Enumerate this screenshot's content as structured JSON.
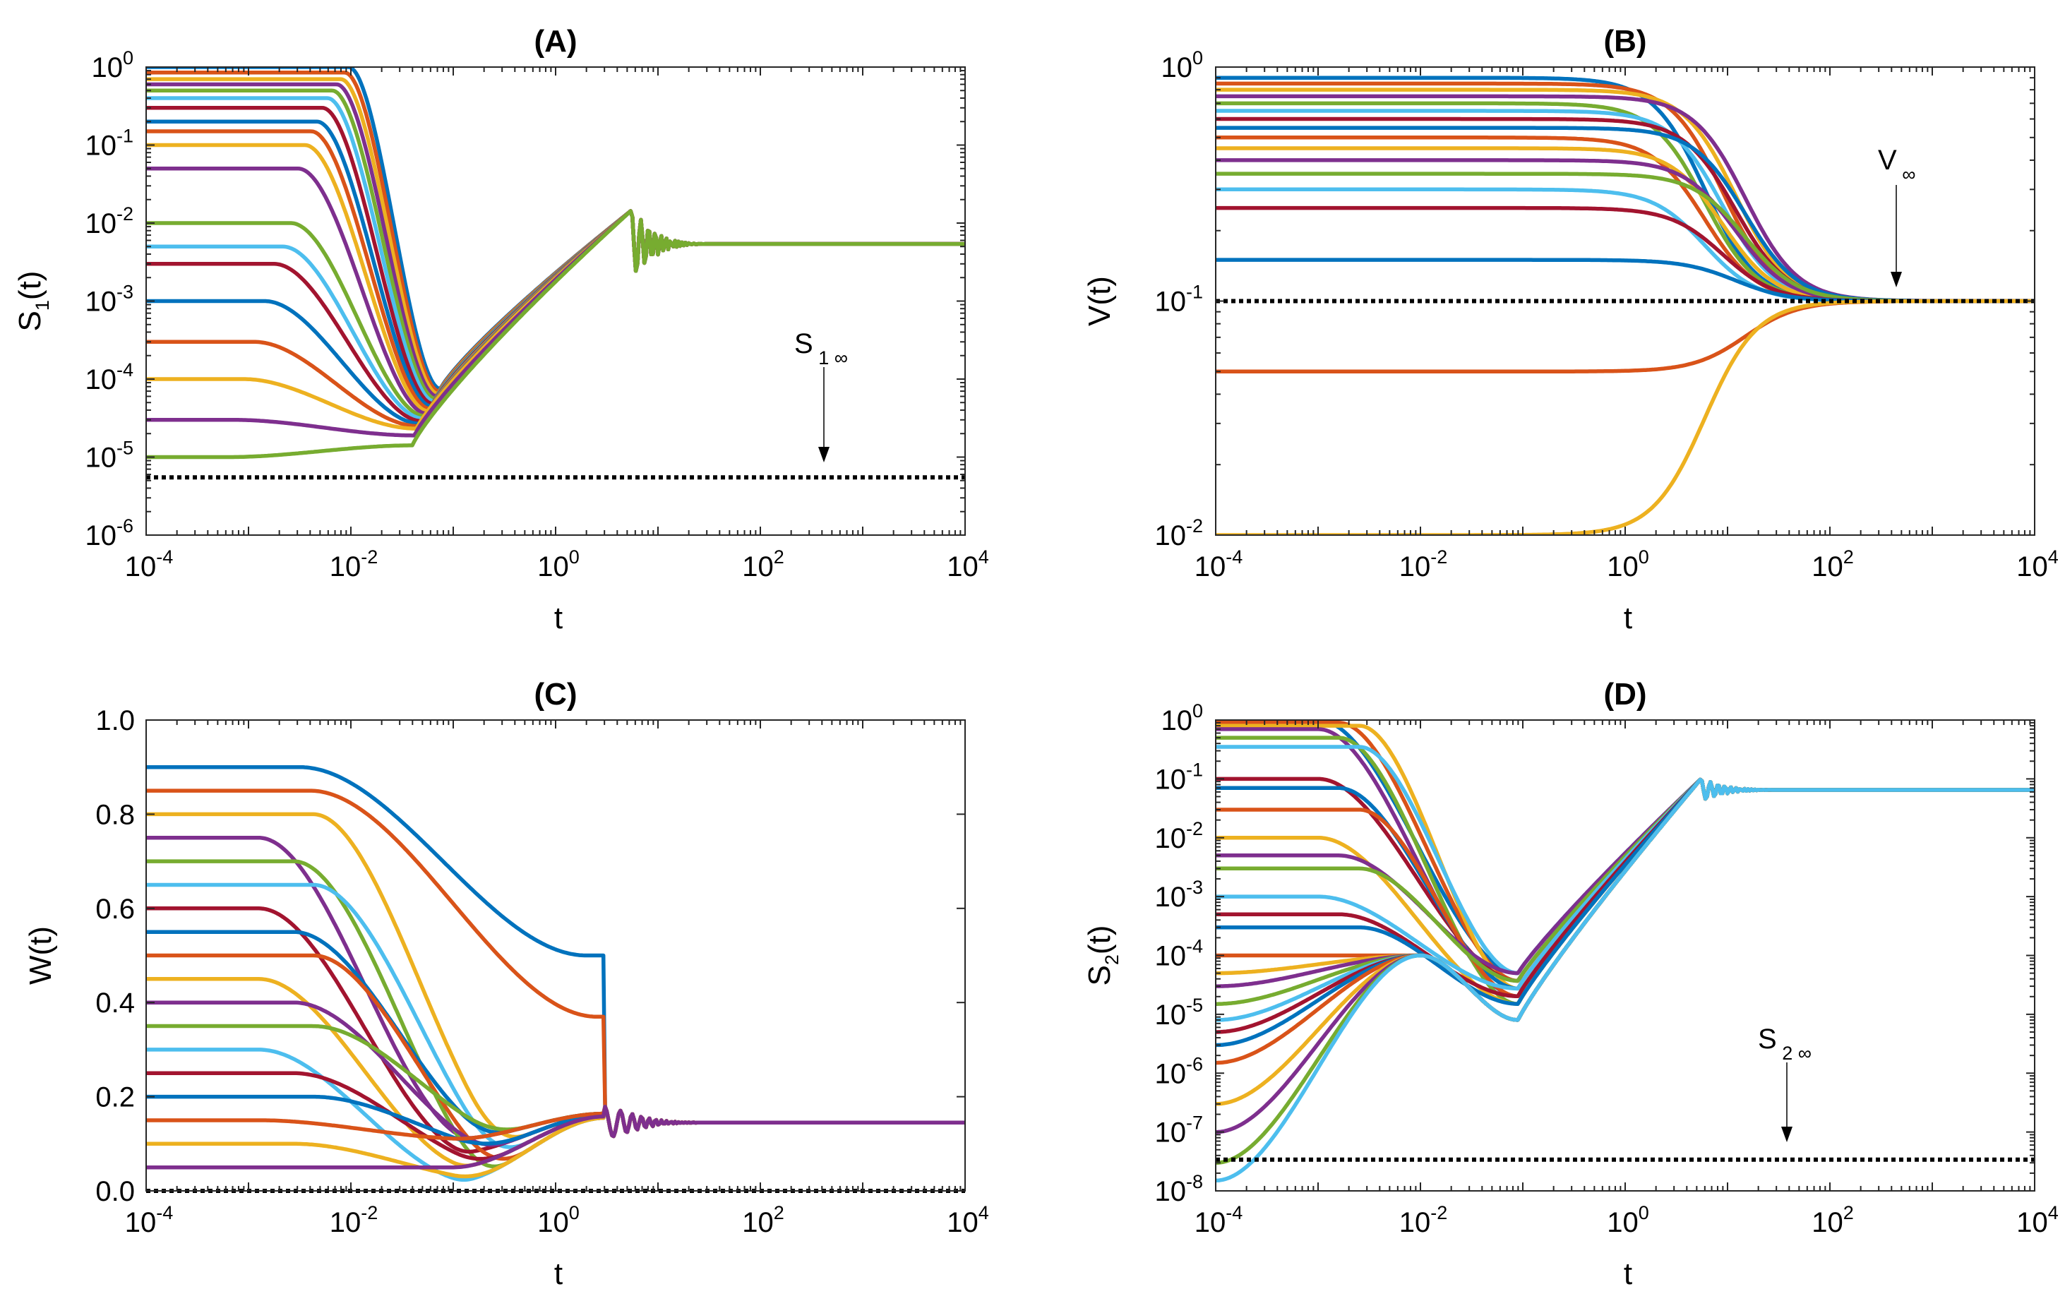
{
  "chart_data": [
    {
      "id": "A",
      "type": "line",
      "title": "(A)",
      "xlabel": "t",
      "ylabel": {
        "base": "S",
        "sub": "1",
        "rest": "(t)"
      },
      "xscale": "log",
      "yscale": "log",
      "xlim": [
        0.0001,
        10000
      ],
      "ylim": [
        1e-06,
        1
      ],
      "xticks": [
        {
          "base": "10",
          "exp": "-4"
        },
        {
          "base": "10",
          "exp": "-2"
        },
        {
          "base": "10",
          "exp": "0"
        },
        {
          "base": "10",
          "exp": "2"
        },
        {
          "base": "10",
          "exp": "4"
        }
      ],
      "yticks": [
        {
          "base": "10",
          "exp": "-6"
        },
        {
          "base": "10",
          "exp": "-5"
        },
        {
          "base": "10",
          "exp": "-4"
        },
        {
          "base": "10",
          "exp": "-3"
        },
        {
          "base": "10",
          "exp": "-2"
        },
        {
          "base": "10",
          "exp": "-1"
        },
        {
          "base": "10",
          "exp": "0"
        }
      ],
      "model": "s1",
      "steady_state": 0.0054,
      "oscillation_start": 5.5,
      "minimum_time": 0.075,
      "initial_values": [
        1.0,
        0.85,
        0.7,
        0.6,
        0.5,
        0.4,
        0.3,
        0.2,
        0.15,
        0.1,
        0.05,
        0.01,
        0.005,
        0.003,
        0.001,
        0.0003,
        0.0001,
        3e-05,
        1e-05
      ],
      "asymptote": {
        "value": 5.5e-06,
        "label_base": "S",
        "label_sub": "1 ∞"
      }
    },
    {
      "id": "B",
      "type": "line",
      "title": "(B)",
      "xlabel": "t",
      "ylabel": {
        "base": "V(t)",
        "sub": "",
        "rest": ""
      },
      "xscale": "log",
      "yscale": "log",
      "xlim": [
        0.0001,
        10000
      ],
      "ylim": [
        0.01,
        1
      ],
      "xticks": [
        {
          "base": "10",
          "exp": "-4"
        },
        {
          "base": "10",
          "exp": "-2"
        },
        {
          "base": "10",
          "exp": "0"
        },
        {
          "base": "10",
          "exp": "2"
        },
        {
          "base": "10",
          "exp": "4"
        }
      ],
      "yticks": [
        {
          "base": "10",
          "exp": "-2"
        },
        {
          "base": "10",
          "exp": "-1"
        },
        {
          "base": "10",
          "exp": "0"
        }
      ],
      "model": "v",
      "steady_state": 0.1,
      "initial_values": [
        0.9,
        0.85,
        0.8,
        0.75,
        0.7,
        0.65,
        0.6,
        0.55,
        0.5,
        0.45,
        0.4,
        0.35,
        0.3,
        0.25,
        0.15,
        0.05,
        0.01
      ],
      "asymptote": {
        "value": 0.1,
        "label_base": "V",
        "label_sub": "∞"
      }
    },
    {
      "id": "C",
      "type": "line",
      "title": "(C)",
      "xlabel": "t",
      "ylabel": {
        "base": "W(t)",
        "sub": "",
        "rest": ""
      },
      "xscale": "log",
      "yscale": "linear",
      "xlim": [
        0.0001,
        10000
      ],
      "ylim": [
        0,
        1
      ],
      "xticks": [
        {
          "base": "10",
          "exp": "-4"
        },
        {
          "base": "10",
          "exp": "-2"
        },
        {
          "base": "10",
          "exp": "0"
        },
        {
          "base": "10",
          "exp": "2"
        },
        {
          "base": "10",
          "exp": "4"
        }
      ],
      "yticks": [
        {
          "label": "0.0",
          "value": 0
        },
        {
          "label": "0.2",
          "value": 0.2
        },
        {
          "label": "0.4",
          "value": 0.4
        },
        {
          "label": "0.6",
          "value": 0.6
        },
        {
          "label": "0.8",
          "value": 0.8
        },
        {
          "label": "1.0",
          "value": 1
        }
      ],
      "model": "w",
      "steady_state": 0.145,
      "initial_values": [
        0.9,
        0.85,
        0.8,
        0.75,
        0.7,
        0.65,
        0.6,
        0.55,
        0.5,
        0.45,
        0.4,
        0.35,
        0.3,
        0.25,
        0.2,
        0.15,
        0.1,
        0.05
      ],
      "asymptote": {
        "value": 0.0,
        "label_base": "",
        "label_sub": ""
      }
    },
    {
      "id": "D",
      "type": "line",
      "title": "(D)",
      "xlabel": "t",
      "ylabel": {
        "base": "S",
        "sub": "2",
        "rest": "(t)"
      },
      "xscale": "log",
      "yscale": "log",
      "xlim": [
        0.0001,
        10000
      ],
      "ylim": [
        1e-08,
        1
      ],
      "xticks": [
        {
          "base": "10",
          "exp": "-4"
        },
        {
          "base": "10",
          "exp": "-2"
        },
        {
          "base": "10",
          "exp": "0"
        },
        {
          "base": "10",
          "exp": "2"
        },
        {
          "base": "10",
          "exp": "4"
        }
      ],
      "yticks": [
        {
          "base": "10",
          "exp": "-8"
        },
        {
          "base": "10",
          "exp": "-7"
        },
        {
          "base": "10",
          "exp": "-6"
        },
        {
          "base": "10",
          "exp": "-5"
        },
        {
          "base": "10",
          "exp": "-4"
        },
        {
          "base": "10",
          "exp": "-3"
        },
        {
          "base": "10",
          "exp": "-2"
        },
        {
          "base": "10",
          "exp": "-1"
        },
        {
          "base": "10",
          "exp": "0"
        }
      ],
      "model": "s2",
      "steady_state": 0.065,
      "oscillation_start": 5.5,
      "minimum_time": 0.09,
      "initial_values": [
        1.0,
        0.9,
        0.8,
        0.7,
        0.5,
        0.35,
        0.1,
        0.07,
        0.03,
        0.01,
        0.005,
        0.003,
        0.001,
        0.0005,
        0.0003,
        0.0001,
        5e-05,
        3e-05,
        1.5e-05,
        8e-06,
        5e-06,
        3e-06,
        1.5e-06,
        3e-07,
        1e-07,
        3e-08,
        1.5e-08
      ],
      "asymptote": {
        "value": 3.4e-08,
        "label_base": "S",
        "label_sub": "2 ∞"
      }
    }
  ],
  "palette": [
    "#0072BD",
    "#D95319",
    "#EDB120",
    "#7E2F8E",
    "#77AC30",
    "#4DBEEE",
    "#A2142F"
  ]
}
